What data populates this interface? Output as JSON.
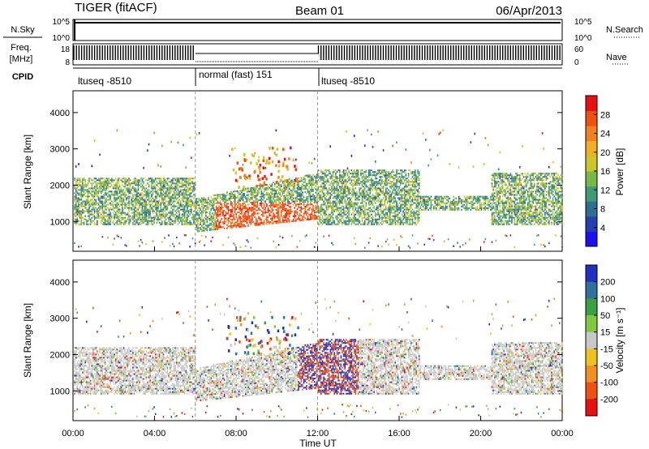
{
  "header": {
    "title": "TIGER (fitACF)",
    "beam": "Beam 01",
    "date": "06/Apr/2013"
  },
  "params_panel": {
    "nsky_label": "N.Sky",
    "nsky_ticks": [
      "10^5",
      "10^0"
    ],
    "nsearch_label": "N.Search",
    "freq_label_line1": "Freq.",
    "freq_label_line2": "[MHz]",
    "freq_ticks": [
      "18",
      "8"
    ],
    "nave_label": "Nave",
    "nave_ticks": [
      "60",
      "0"
    ],
    "cpid_label": "CPID",
    "cpid_segments": [
      {
        "label": "ltuseq -8510",
        "start_hour": 0,
        "end_hour": 6
      },
      {
        "label": "normal (fast) 151",
        "start_hour": 6,
        "end_hour": 12
      },
      {
        "label": "ltuseq -8510",
        "start_hour": 12,
        "end_hour": 24
      }
    ]
  },
  "chart_data": [
    {
      "type": "heatmap",
      "name": "power",
      "ylabel": "Slant Range [km]",
      "xlabel": "",
      "xlim": [
        0,
        24
      ],
      "ylim": [
        180,
        4600
      ],
      "yticks": [
        1000,
        2000,
        3000,
        4000
      ],
      "colorbar": {
        "label": "Power [dB]",
        "ticks": [
          4,
          8,
          12,
          16,
          20,
          24,
          28
        ],
        "range": [
          0,
          32
        ],
        "colors": [
          "#1a10f0",
          "#2440b0",
          "#2c6e90",
          "#3e9a78",
          "#78b848",
          "#c8c828",
          "#f0b020",
          "#f08020",
          "#f05010",
          "#e81010"
        ]
      }
    },
    {
      "type": "heatmap",
      "name": "velocity",
      "ylabel": "Slant Range [km]",
      "xlabel": "Time UT",
      "xlim": [
        0,
        24
      ],
      "ylim": [
        180,
        4600
      ],
      "yticks": [
        1000,
        2000,
        3000,
        4000
      ],
      "xticks": [
        "00:00",
        "04:00",
        "08:00",
        "12:00",
        "16:00",
        "20:00",
        "00:00"
      ],
      "colorbar": {
        "label": "Velocity [m s⁻¹]",
        "ticks": [
          200,
          100,
          50,
          15,
          -15,
          -50,
          -100,
          -200
        ],
        "colors": [
          "#2030c0",
          "#3070a0",
          "#3aa040",
          "#80c840",
          "#c8c8c8",
          "#f0c020",
          "#f09020",
          "#f05010",
          "#e81010"
        ]
      }
    }
  ]
}
